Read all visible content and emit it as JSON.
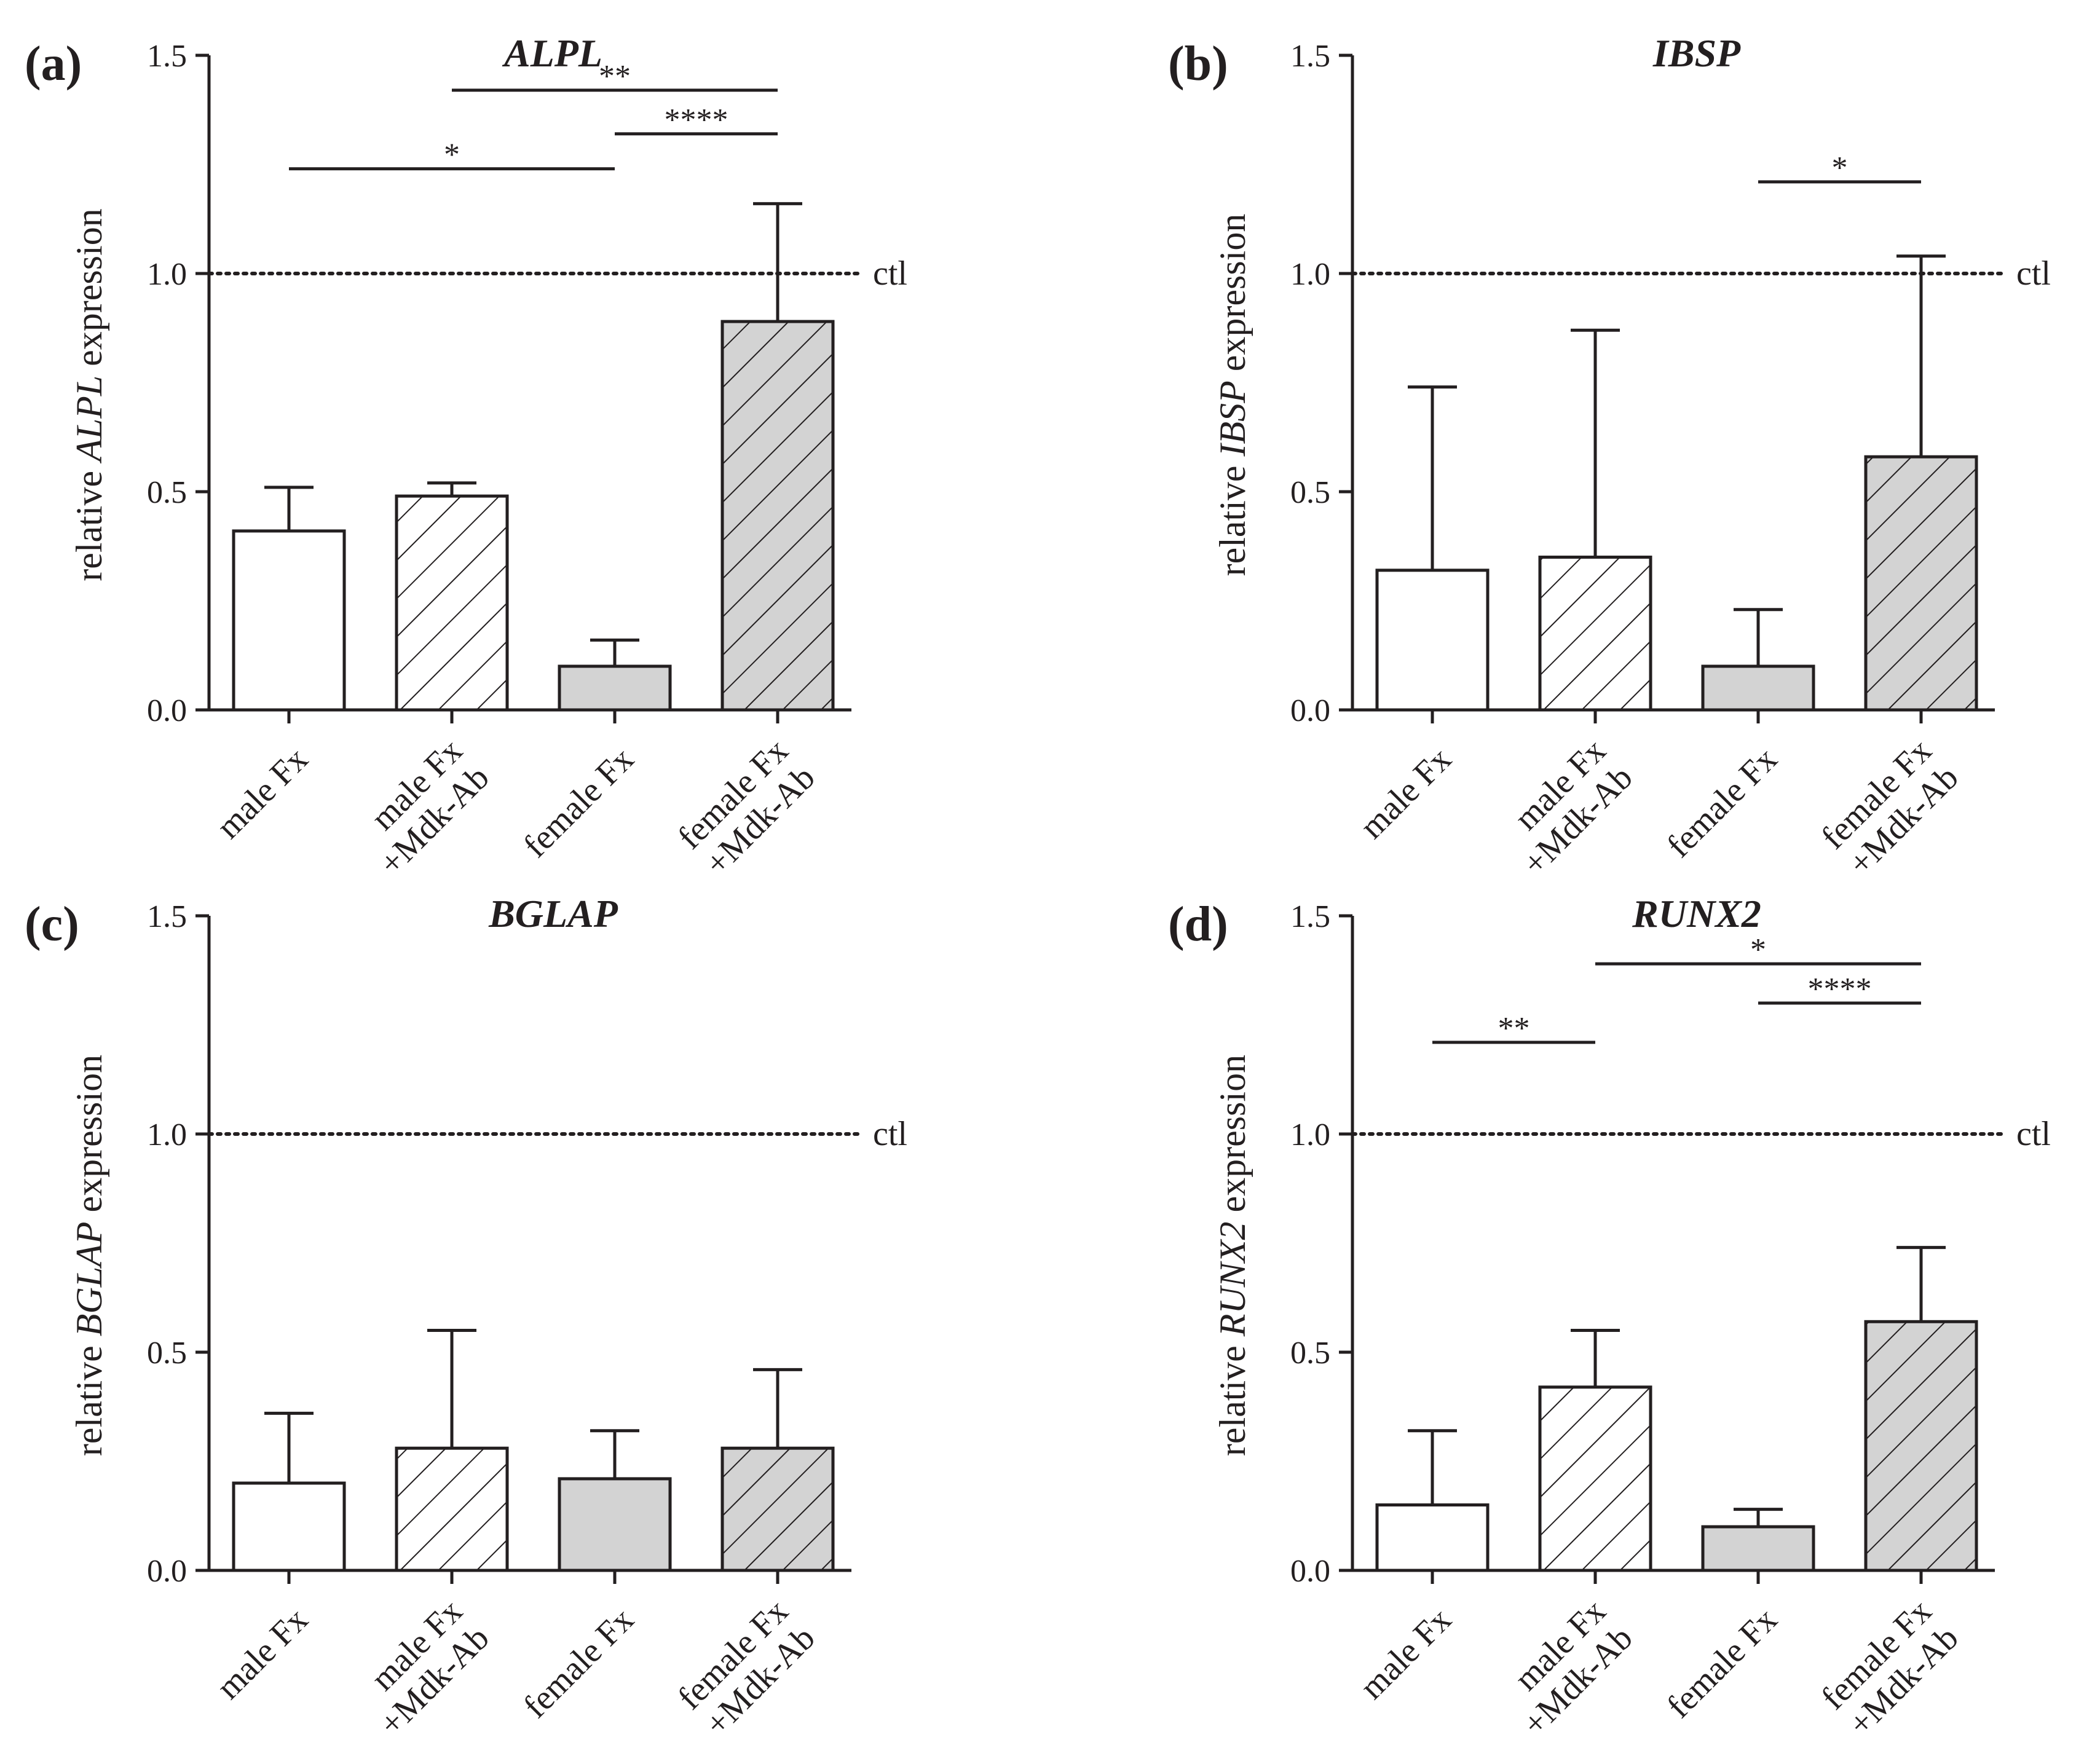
{
  "figure": {
    "reference_line_value": 1.0,
    "colors": {
      "axis": "#231f20",
      "bar_outline": "#231f20",
      "male_fill": "#ffffff",
      "female_fill": "#d3d3d3"
    }
  },
  "chart_data": [
    {
      "type": "bar",
      "panel_label": "(a)",
      "title": "ALPL",
      "ylabel_prefix": "relative ",
      "ylabel_gene": "ALPL",
      "ylabel_suffix": " expression",
      "xlabel": "",
      "ylim": [
        0,
        1.5
      ],
      "yticks": [
        "0.0",
        "0.5",
        "1.0",
        "1.5"
      ],
      "reference_line": {
        "value": 1.0,
        "label": "ctl"
      },
      "categories": [
        {
          "line1": "male Fx",
          "line2": "",
          "pattern": "none",
          "fill": "#ffffff"
        },
        {
          "line1": "male Fx",
          "line2": "+Mdk-Ab",
          "pattern": "hatch",
          "fill": "#ffffff"
        },
        {
          "line1": "female Fx",
          "line2": "",
          "pattern": "none",
          "fill": "#d3d3d3"
        },
        {
          "line1": "female Fx",
          "line2": "+Mdk-Ab",
          "pattern": "hatch",
          "fill": "#d3d3d3"
        }
      ],
      "values": [
        0.41,
        0.49,
        0.1,
        0.89
      ],
      "errors": [
        0.1,
        0.03,
        0.06,
        0.27
      ],
      "significance": [
        {
          "from": 0,
          "to": 2,
          "y": 1.24,
          "label": "*"
        },
        {
          "from": 1,
          "to": 3,
          "y": 1.42,
          "label": "**"
        },
        {
          "from": 2,
          "to": 3,
          "y": 1.32,
          "label": "****"
        }
      ]
    },
    {
      "type": "bar",
      "panel_label": "(b)",
      "title": "IBSP",
      "ylabel_prefix": "relative ",
      "ylabel_gene": "IBSP",
      "ylabel_suffix": " expression",
      "xlabel": "",
      "ylim": [
        0,
        1.5
      ],
      "yticks": [
        "0.0",
        "0.5",
        "1.0",
        "1.5"
      ],
      "reference_line": {
        "value": 1.0,
        "label": "ctl"
      },
      "categories": [
        {
          "line1": "male Fx",
          "line2": "",
          "pattern": "none",
          "fill": "#ffffff"
        },
        {
          "line1": "male Fx",
          "line2": "+Mdk-Ab",
          "pattern": "hatch",
          "fill": "#ffffff"
        },
        {
          "line1": "female Fx",
          "line2": "",
          "pattern": "none",
          "fill": "#d3d3d3"
        },
        {
          "line1": "female Fx",
          "line2": "+Mdk-Ab",
          "pattern": "hatch",
          "fill": "#d3d3d3"
        }
      ],
      "values": [
        0.32,
        0.35,
        0.1,
        0.58
      ],
      "errors": [
        0.42,
        0.52,
        0.13,
        0.46
      ],
      "significance": [
        {
          "from": 2,
          "to": 3,
          "y": 1.21,
          "label": "*"
        }
      ]
    },
    {
      "type": "bar",
      "panel_label": "(c)",
      "title": "BGLAP",
      "ylabel_prefix": "relative ",
      "ylabel_gene": "BGLAP",
      "ylabel_suffix": " expression",
      "xlabel": "",
      "ylim": [
        0,
        1.5
      ],
      "yticks": [
        "0.0",
        "0.5",
        "1.0",
        "1.5"
      ],
      "reference_line": {
        "value": 1.0,
        "label": "ctl"
      },
      "categories": [
        {
          "line1": "male Fx",
          "line2": "",
          "pattern": "none",
          "fill": "#ffffff"
        },
        {
          "line1": "male Fx",
          "line2": "+Mdk-Ab",
          "pattern": "hatch",
          "fill": "#ffffff"
        },
        {
          "line1": "female Fx",
          "line2": "",
          "pattern": "none",
          "fill": "#d3d3d3"
        },
        {
          "line1": "female Fx",
          "line2": "+Mdk-Ab",
          "pattern": "hatch",
          "fill": "#d3d3d3"
        }
      ],
      "values": [
        0.2,
        0.28,
        0.21,
        0.28
      ],
      "errors": [
        0.16,
        0.27,
        0.11,
        0.18
      ],
      "significance": []
    },
    {
      "type": "bar",
      "panel_label": "(d)",
      "title": "RUNX2",
      "ylabel_prefix": "relative ",
      "ylabel_gene": "RUNX2",
      "ylabel_suffix": " expression",
      "xlabel": "",
      "ylim": [
        0,
        1.5
      ],
      "yticks": [
        "0.0",
        "0.5",
        "1.0",
        "1.5"
      ],
      "reference_line": {
        "value": 1.0,
        "label": "ctl"
      },
      "categories": [
        {
          "line1": "male Fx",
          "line2": "",
          "pattern": "none",
          "fill": "#ffffff"
        },
        {
          "line1": "male Fx",
          "line2": "+Mdk-Ab",
          "pattern": "hatch",
          "fill": "#ffffff"
        },
        {
          "line1": "female Fx",
          "line2": "",
          "pattern": "none",
          "fill": "#d3d3d3"
        },
        {
          "line1": "female Fx",
          "line2": "+Mdk-Ab",
          "pattern": "hatch",
          "fill": "#d3d3d3"
        }
      ],
      "values": [
        0.15,
        0.42,
        0.1,
        0.57
      ],
      "errors": [
        0.17,
        0.13,
        0.04,
        0.17
      ],
      "significance": [
        {
          "from": 0,
          "to": 1,
          "y": 1.21,
          "label": "**"
        },
        {
          "from": 1,
          "to": 3,
          "y": 1.39,
          "label": "*"
        },
        {
          "from": 2,
          "to": 3,
          "y": 1.3,
          "label": "****"
        }
      ]
    }
  ]
}
